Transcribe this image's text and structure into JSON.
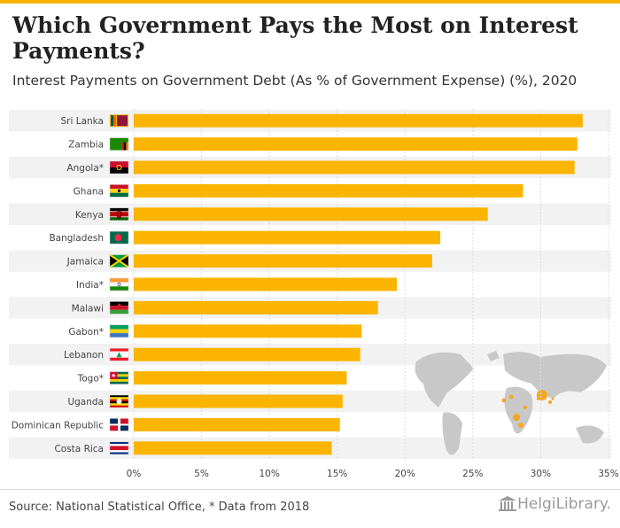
{
  "header": {
    "title": "Which Government Pays the Most on Interest Payments?",
    "subtitle": "Interest Payments on Government Debt (As % of Government Expense) (%), 2020"
  },
  "footer": {
    "source": "Source: National Statistical Office, * Data from 2018",
    "logo_text": "HelgiLibrary."
  },
  "colors": {
    "bar": "#FBB400",
    "row_stripe": "#f2f2f2",
    "map_land": "#c8c8c8",
    "map_highlight": "#F5A623"
  },
  "chart_data": {
    "type": "bar",
    "orientation": "horizontal",
    "title": "Which Government Pays the Most on Interest Payments?",
    "subtitle": "Interest Payments on Government Debt (As % of Government Expense) (%), 2020",
    "categories": [
      "Sri Lanka",
      "Zambia",
      "Angola*",
      "Ghana",
      "Kenya",
      "Bangladesh",
      "Jamaica",
      "India*",
      "Malawi",
      "Gabon*",
      "Lebanon",
      "Togo*",
      "Uganda",
      "Dominican Republic",
      "Costa Rica"
    ],
    "values": [
      33.1,
      32.7,
      32.5,
      28.7,
      26.1,
      22.6,
      22.0,
      19.4,
      18.0,
      16.8,
      16.7,
      15.7,
      15.4,
      15.2,
      14.6
    ],
    "x_ticks": [
      "0%",
      "5%",
      "10%",
      "15%",
      "20%",
      "25%",
      "30%",
      "35%"
    ],
    "xlim": [
      0,
      35
    ],
    "xlabel": "",
    "ylabel": "",
    "grid": true,
    "legend": "none",
    "flags": [
      "sri-lanka-flag",
      "zambia-flag",
      "angola-flag",
      "ghana-flag",
      "kenya-flag",
      "bangladesh-flag",
      "jamaica-flag",
      "india-flag",
      "malawi-flag",
      "gabon-flag",
      "lebanon-flag",
      "togo-flag",
      "uganda-flag",
      "dominican-republic-flag",
      "costa-rica-flag"
    ]
  }
}
